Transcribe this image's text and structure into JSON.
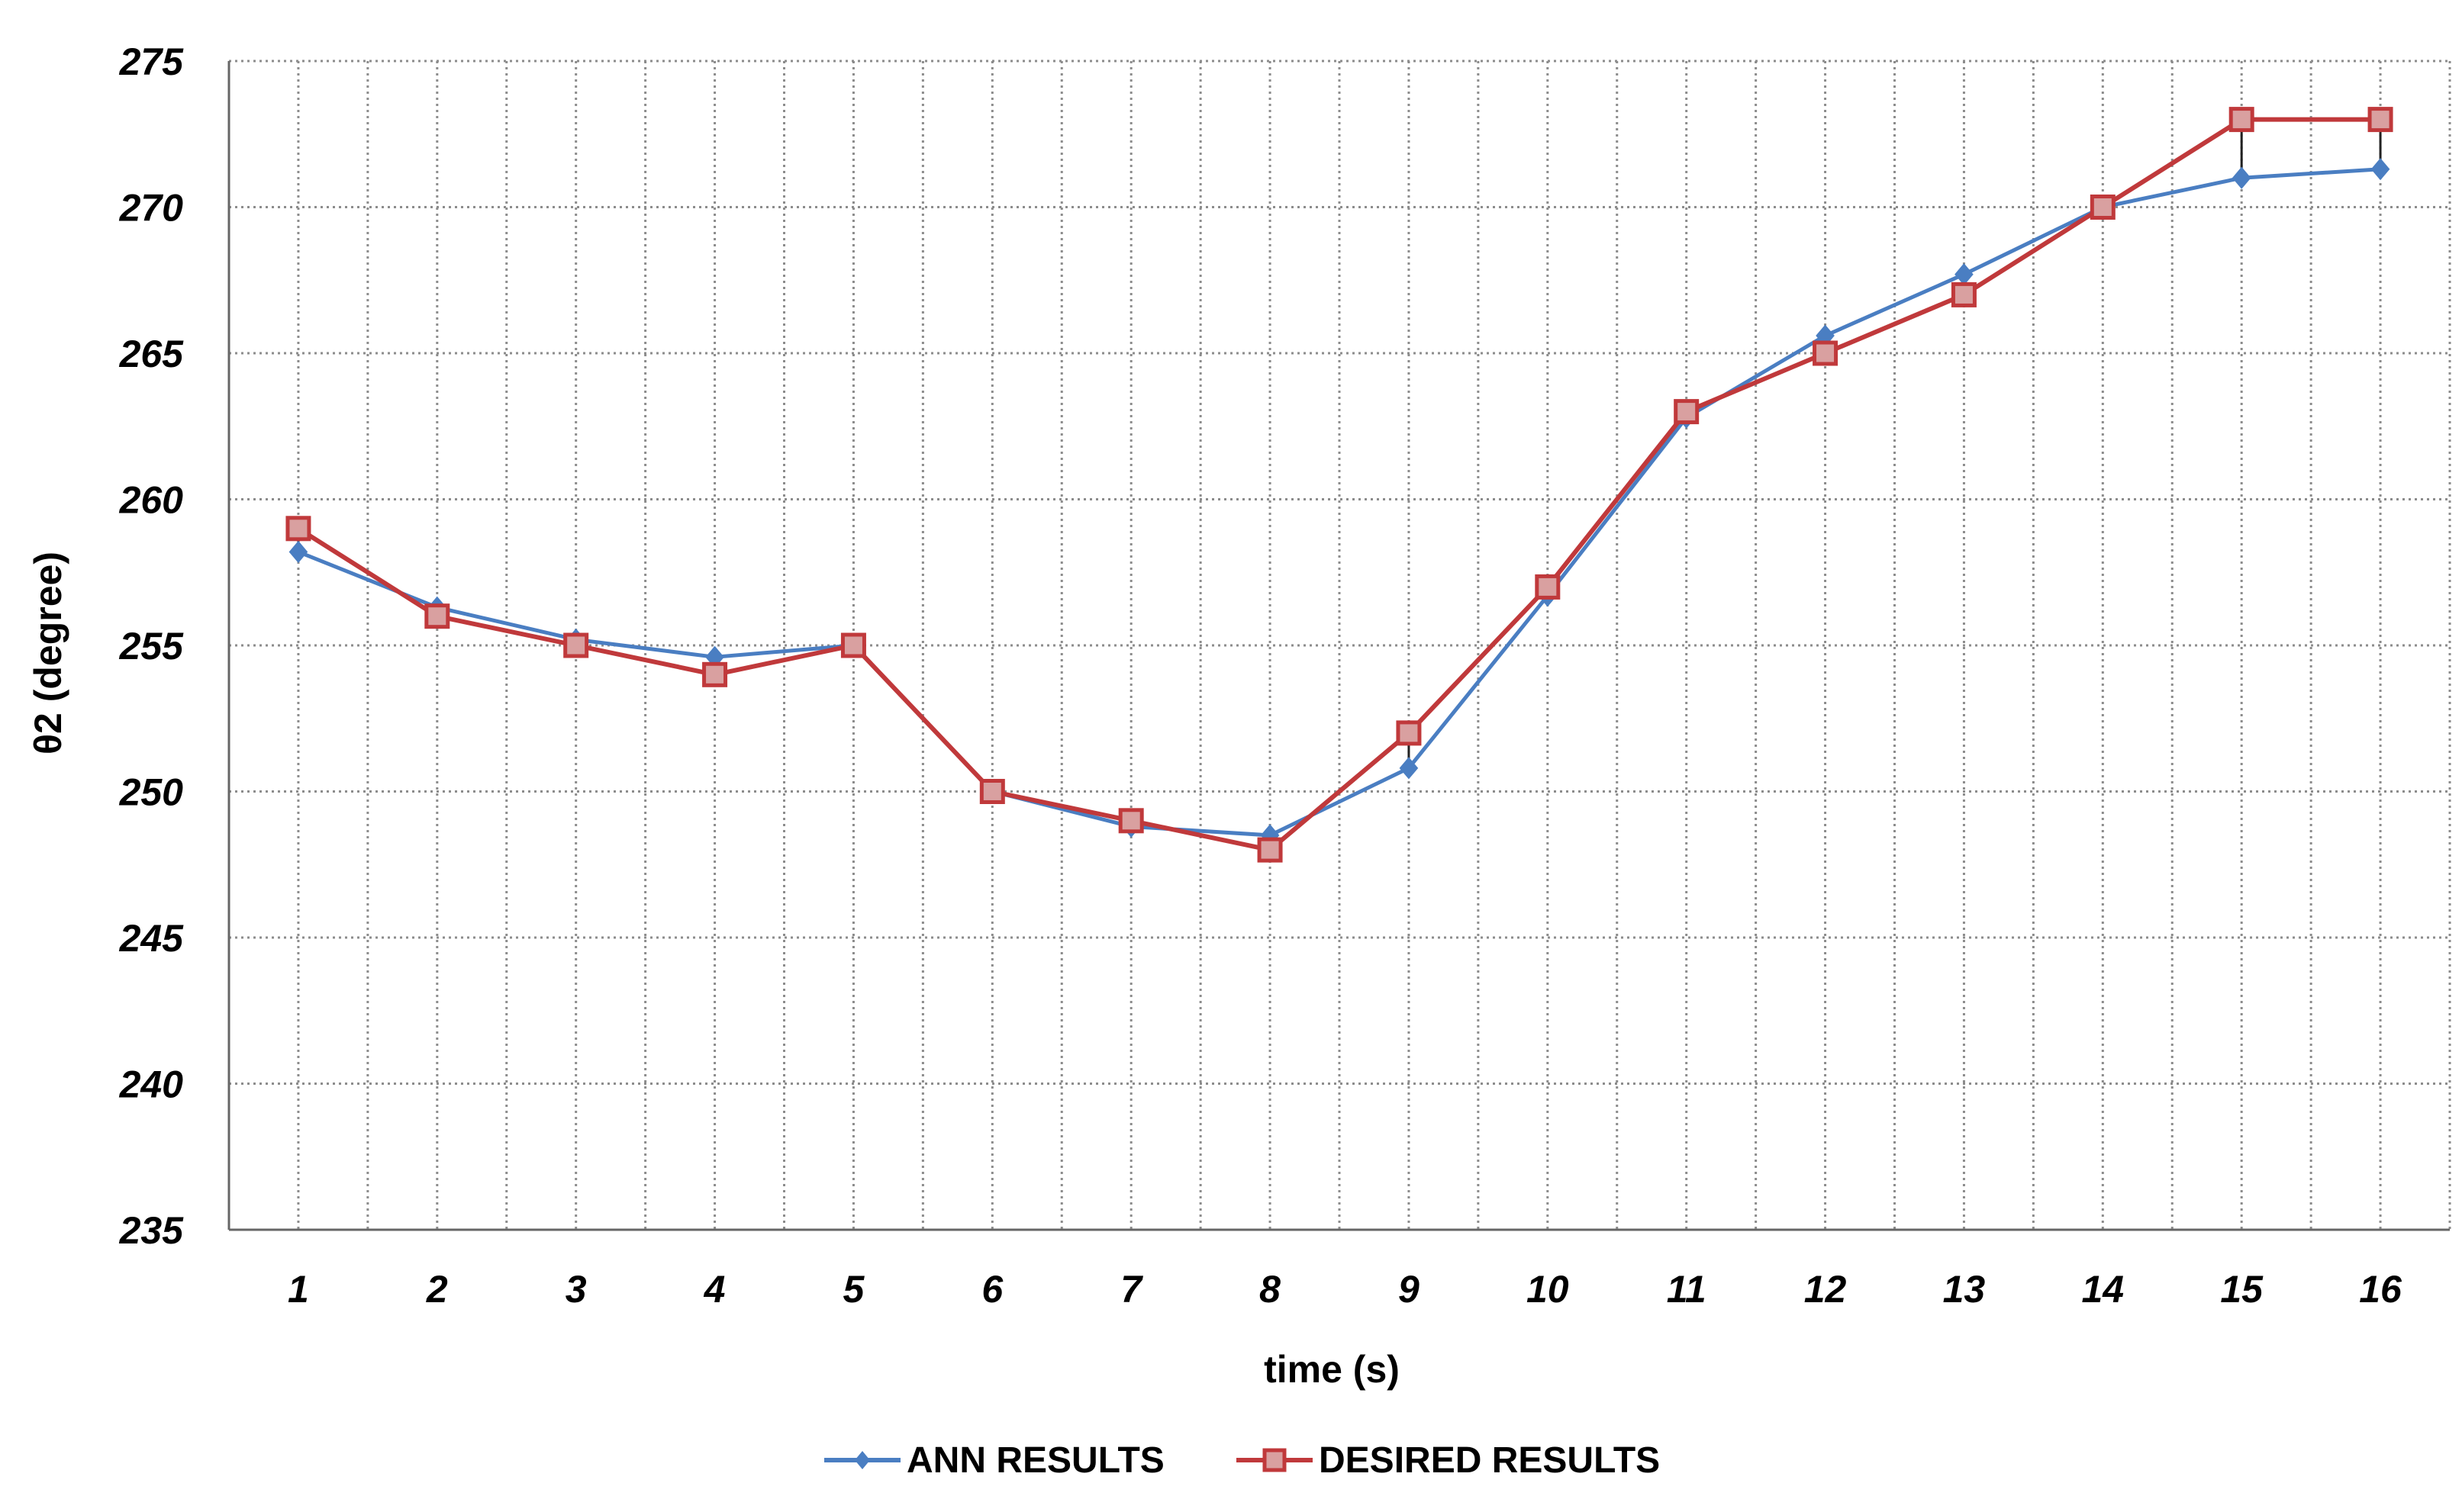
{
  "chart_data": {
    "type": "line",
    "title": "",
    "xlabel": "time (s)",
    "ylabel": "θ2 (degree)",
    "categories": [
      "1",
      "2",
      "3",
      "4",
      "5",
      "6",
      "7",
      "8",
      "9",
      "10",
      "11",
      "12",
      "13",
      "14",
      "15",
      "16"
    ],
    "ylim": [
      235,
      275
    ],
    "yticks": [
      235,
      240,
      245,
      250,
      255,
      260,
      265,
      270,
      275
    ],
    "grid": true,
    "legend_position": "bottom",
    "series": [
      {
        "name": "ANN RESULTS",
        "color": "#4a7ec2",
        "marker": "diamond",
        "values": [
          258.2,
          256.3,
          255.2,
          254.6,
          255,
          250,
          248.8,
          248.5,
          250.8,
          256.7,
          262.8,
          265.6,
          267.7,
          270,
          271,
          271.3
        ]
      },
      {
        "name": "DESIRED RESULTS",
        "color": "#c0393b",
        "marker": "square",
        "values": [
          259,
          256,
          255,
          254,
          255,
          250,
          249,
          248,
          252,
          257,
          263,
          265,
          267,
          270,
          273,
          273
        ]
      }
    ]
  }
}
